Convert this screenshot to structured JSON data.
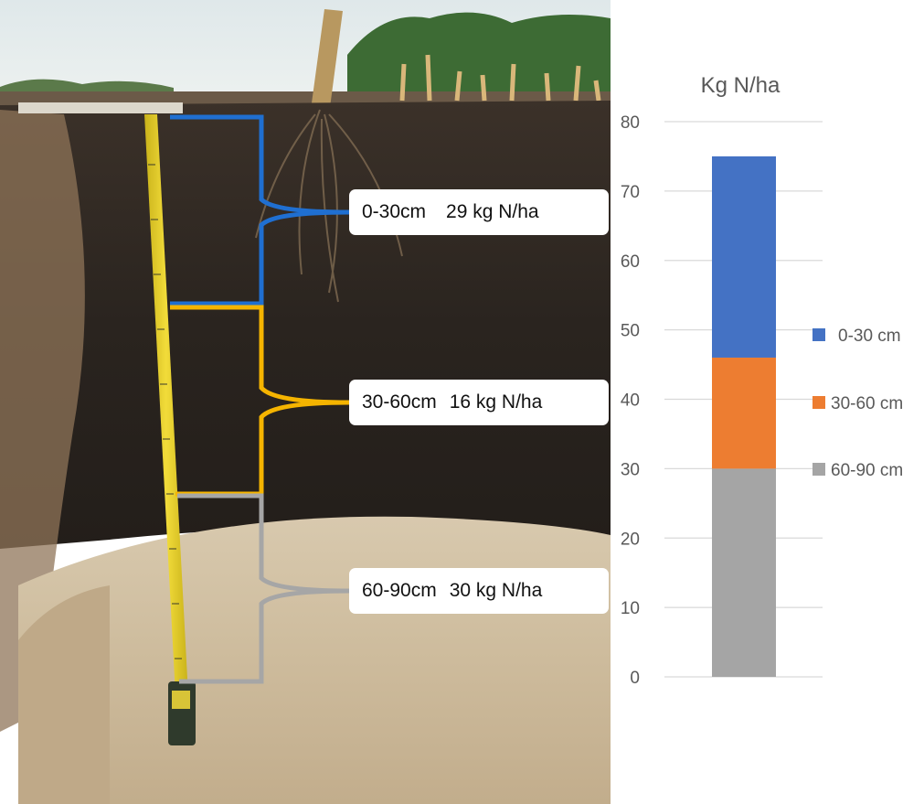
{
  "photo": {
    "callouts": [
      {
        "depth": "0-30cm",
        "amount": "29 kg N/ha",
        "color": "#1f6fd1"
      },
      {
        "depth": "30-60cm",
        "amount": "16 kg N/ha",
        "color": "#f5b400"
      },
      {
        "depth": "60-90cm",
        "amount": "30 kg N/ha",
        "color": "#a6a6a6"
      }
    ]
  },
  "chart_data": {
    "type": "bar",
    "stacked": true,
    "title": "Kg N/ha",
    "categories": [
      ""
    ],
    "series": [
      {
        "name": "60-90 cm",
        "values": [
          30
        ],
        "color": "#a5a5a5"
      },
      {
        "name": "30-60 cm",
        "values": [
          16
        ],
        "color": "#ed7d31"
      },
      {
        "name": "0-30 cm",
        "values": [
          29
        ],
        "color": "#4472c4"
      }
    ],
    "ylim": [
      0,
      80
    ],
    "yticks": [
      0,
      10,
      20,
      30,
      40,
      50,
      60,
      70,
      80
    ],
    "grid": true,
    "legend": "right"
  }
}
